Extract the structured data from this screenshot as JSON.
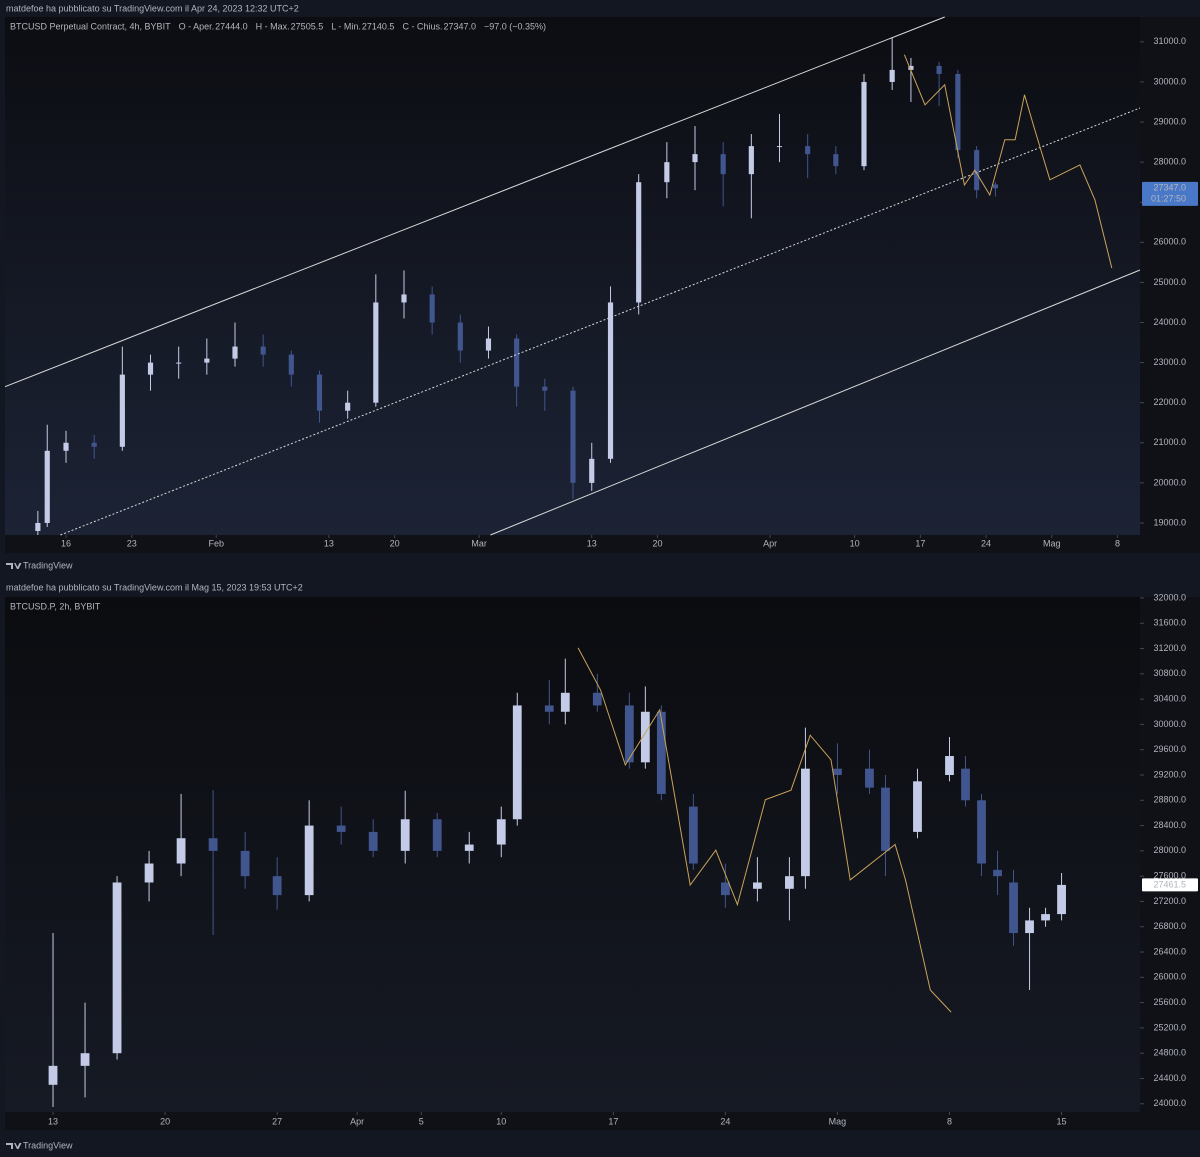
{
  "chart_data": [
    {
      "type": "candlestick",
      "header": "matdefoe ha pubblicato su TradingView.com il Apr 24, 2023 12:32 UTC+2",
      "brand": "TradingView",
      "legend": [
        {
          "text": "BTCUSD Perpetual Contract, 4h, BYBIT",
          "color": "#d1d4dc"
        },
        {
          "text": "O - Aper.",
          "color": "#d1d4dc"
        },
        {
          "text": "27444.0",
          "color": "#6a8fd8"
        },
        {
          "text": "H - Max.",
          "color": "#d1d4dc"
        },
        {
          "text": "27505.5",
          "color": "#6a8fd8"
        },
        {
          "text": "L - Min.",
          "color": "#d1d4dc"
        },
        {
          "text": "27140.5",
          "color": "#6a8fd8"
        },
        {
          "text": "C - Chius.",
          "color": "#d1d4dc"
        },
        {
          "text": "27347.0",
          "color": "#6a8fd8"
        },
        {
          "text": "−97.0 (−0.35%)",
          "color": "#6a8fd8"
        }
      ],
      "background": [
        "#0c0d12",
        "#1c2335"
      ],
      "up_color": "#c3cbe6",
      "down_color": "#41558f",
      "xlim": [
        9.5,
        130.4
      ],
      "ylim": [
        18700,
        31620
      ],
      "xticks": [
        {
          "value": 16,
          "label": "16"
        },
        {
          "value": 23,
          "label": "23"
        },
        {
          "value": 32,
          "label": "Feb"
        },
        {
          "value": 44,
          "label": "13"
        },
        {
          "value": 51,
          "label": "20"
        },
        {
          "value": 60,
          "label": "Mar"
        },
        {
          "value": 72,
          "label": "13"
        },
        {
          "value": 79,
          "label": "20"
        },
        {
          "value": 91,
          "label": "Apr"
        },
        {
          "value": 100,
          "label": "10"
        },
        {
          "value": 107,
          "label": "17"
        },
        {
          "value": 114,
          "label": "24"
        },
        {
          "value": 121,
          "label": "Mag"
        },
        {
          "value": 128,
          "label": "8"
        }
      ],
      "yticks": [
        {
          "value": 19000,
          "label": "19000.0"
        },
        {
          "value": 20000,
          "label": "20000.0"
        },
        {
          "value": 21000,
          "label": "21000.0"
        },
        {
          "value": 22000,
          "label": "22000.0"
        },
        {
          "value": 23000,
          "label": "23000.0"
        },
        {
          "value": 24000,
          "label": "24000.0"
        },
        {
          "value": 25000,
          "label": "25000.0"
        },
        {
          "value": 26000,
          "label": "26000.0"
        },
        {
          "value": 27000,
          "label": "27000.0"
        },
        {
          "value": 28000,
          "label": "28000.0"
        },
        {
          "value": 29000,
          "label": "29000.0"
        },
        {
          "value": 30000,
          "label": "30000.0"
        },
        {
          "value": 31000,
          "label": "31000.0"
        }
      ],
      "x": [
        13,
        14,
        16,
        19,
        22,
        25,
        28,
        31,
        34,
        37,
        40,
        43,
        46,
        49,
        52,
        55,
        58,
        61,
        64,
        67,
        70,
        72,
        74,
        77,
        80,
        83,
        86,
        89,
        92,
        95,
        98,
        101,
        104,
        106,
        109,
        111,
        113,
        115
      ],
      "open": [
        18800,
        19000,
        20800,
        21000,
        20900,
        22700,
        23000,
        23000,
        23100,
        23400,
        23200,
        22700,
        21800,
        22000,
        24500,
        24700,
        24000,
        23300,
        23600,
        22400,
        22300,
        20000,
        20600,
        24500,
        27500,
        28000,
        28200,
        27700,
        28400,
        28400,
        28200,
        27900,
        30000,
        30300,
        30400,
        30200,
        28300,
        27444
      ],
      "high": [
        19300,
        21450,
        21300,
        21200,
        23400,
        23200,
        23400,
        23600,
        24000,
        23700,
        23300,
        22800,
        22300,
        25200,
        25300,
        24900,
        24200,
        23900,
        23700,
        22600,
        22400,
        21000,
        24900,
        27700,
        28500,
        28900,
        28500,
        28700,
        29200,
        28700,
        28400,
        30200,
        31100,
        30600,
        30500,
        30300,
        28400,
        27505.5
      ],
      "low": [
        18700,
        18900,
        20500,
        20600,
        20800,
        22300,
        22600,
        22700,
        22900,
        22900,
        22400,
        21500,
        21600,
        21900,
        24100,
        23700,
        23000,
        23100,
        21900,
        21800,
        19600,
        19800,
        20500,
        24200,
        27100,
        27300,
        26900,
        26600,
        28000,
        27600,
        27700,
        27800,
        29800,
        29500,
        29400,
        28100,
        27100,
        27140.5
      ],
      "close": [
        19000,
        20800,
        21000,
        20900,
        22700,
        23000,
        23000,
        23100,
        23400,
        23200,
        22700,
        21800,
        22000,
        24500,
        24700,
        24000,
        23300,
        23600,
        22400,
        22300,
        20000,
        20600,
        24500,
        27500,
        28000,
        28200,
        27700,
        28400,
        28400,
        28200,
        27900,
        30000,
        30300,
        30400,
        30200,
        28300,
        27300,
        27347
      ],
      "drawings": [
        {
          "color": "#d9d9d9",
          "dash": false,
          "x": [
            9.5,
            109.6
          ],
          "y": [
            22400,
            31620
          ]
        },
        {
          "color": "#d9d9d9",
          "dash": true,
          "x": [
            15.4,
            130.4
          ],
          "y": [
            18700,
            29350
          ]
        },
        {
          "color": "#d9d9d9",
          "dash": false,
          "x": [
            61.2,
            130.4
          ],
          "y": [
            18700,
            25310
          ]
        },
        {
          "color": "#c9a35a",
          "dash": false,
          "x": [
            105.3,
            107.5,
            109.6,
            111.7,
            112.8,
            114.4,
            116,
            117.1,
            118.1,
            119.2,
            120.8,
            124,
            125.6,
            127.4
          ],
          "y": [
            30680,
            29430,
            29930,
            27430,
            27800,
            27180,
            28560,
            28560,
            29680,
            28800,
            27560,
            27930,
            27060,
            25360
          ]
        }
      ],
      "price_label": {
        "value": 27347,
        "label": "27347.0",
        "sub": "01:27:50",
        "color": "#4a78c8",
        "text_color": "#ffffff"
      }
    },
    {
      "type": "candlestick",
      "header": "matdefoe ha pubblicato su TradingView.com il Mag 15, 2023 19:53 UTC+2",
      "brand": "TradingView",
      "legend": [
        {
          "text": "BTCUSD.P, 2h, BYBIT",
          "color": "#d1d4dc"
        }
      ],
      "background": [
        "#0b0c10",
        "#161a24"
      ],
      "up_color": "#c3cbe6",
      "down_color": "#41558f",
      "xlim": [
        69,
        139.9
      ],
      "ylim": [
        23870,
        32015
      ],
      "xticks": [
        {
          "value": 72,
          "label": "13"
        },
        {
          "value": 79,
          "label": "20"
        },
        {
          "value": 86,
          "label": "27"
        },
        {
          "value": 91,
          "label": "Apr"
        },
        {
          "value": 95,
          "label": "5"
        },
        {
          "value": 100,
          "label": "10"
        },
        {
          "value": 107,
          "label": "17"
        },
        {
          "value": 114,
          "label": "24"
        },
        {
          "value": 121,
          "label": "Mag"
        },
        {
          "value": 128,
          "label": "8"
        },
        {
          "value": 135,
          "label": "15"
        }
      ],
      "yticks": [
        {
          "value": 24000,
          "label": "24000.0"
        },
        {
          "value": 24400,
          "label": "24400.0"
        },
        {
          "value": 24800,
          "label": "24800.0"
        },
        {
          "value": 25200,
          "label": "25200.0"
        },
        {
          "value": 25600,
          "label": "25600.0"
        },
        {
          "value": 26000,
          "label": "26000.0"
        },
        {
          "value": 26400,
          "label": "26400.0"
        },
        {
          "value": 26800,
          "label": "26800.0"
        },
        {
          "value": 27200,
          "label": "27200.0"
        },
        {
          "value": 27600,
          "label": "27600.0"
        },
        {
          "value": 28000,
          "label": "28000.0"
        },
        {
          "value": 28400,
          "label": "28400.0"
        },
        {
          "value": 28800,
          "label": "28800.0"
        },
        {
          "value": 29200,
          "label": "29200.0"
        },
        {
          "value": 29600,
          "label": "29600.0"
        },
        {
          "value": 30000,
          "label": "30000.0"
        },
        {
          "value": 30400,
          "label": "30400.0"
        },
        {
          "value": 30800,
          "label": "30800.0"
        },
        {
          "value": 31200,
          "label": "31200.0"
        },
        {
          "value": 31600,
          "label": "31600.0"
        },
        {
          "value": 32000,
          "label": "32000.0"
        }
      ],
      "x": [
        72,
        74,
        76,
        78,
        80,
        82,
        84,
        86,
        88,
        90,
        92,
        94,
        96,
        98,
        100,
        101,
        103,
        104,
        106,
        108,
        109,
        110,
        112,
        114,
        116,
        118,
        119,
        121,
        123,
        124,
        126,
        128,
        129,
        130,
        131,
        132,
        133,
        134,
        135
      ],
      "open": [
        24300,
        24600,
        24800,
        27500,
        27800,
        28200,
        28000,
        27600,
        27300,
        28400,
        28300,
        28000,
        28500,
        28000,
        28100,
        28500,
        30300,
        30200,
        30500,
        30300,
        29400,
        30200,
        28700,
        27500,
        27400,
        27400,
        27600,
        29300,
        29300,
        29000,
        28300,
        29200,
        29300,
        28800,
        27700,
        27500,
        26700,
        26900,
        27000
      ],
      "high": [
        26700,
        25600,
        27600,
        28000,
        28900,
        28960,
        28300,
        27900,
        28800,
        28700,
        28500,
        28950,
        28600,
        28300,
        28700,
        30500,
        30700,
        31040,
        30800,
        30500,
        30600,
        30300,
        28900,
        27800,
        27900,
        27900,
        29950,
        29700,
        29600,
        29200,
        29300,
        29800,
        29500,
        28900,
        28000,
        27700,
        27100,
        27100,
        27650
      ],
      "low": [
        23950,
        24100,
        24700,
        27200,
        27600,
        26670,
        27400,
        27070,
        27200,
        28100,
        27900,
        27800,
        27900,
        27800,
        27900,
        28400,
        30000,
        30000,
        30200,
        29300,
        29300,
        28800,
        27700,
        27100,
        27200,
        26900,
        27400,
        28900,
        28900,
        27600,
        28200,
        29100,
        28700,
        27600,
        27300,
        26500,
        25800,
        26800,
        26900
      ],
      "close": [
        24600,
        24800,
        27500,
        27800,
        28200,
        28000,
        27600,
        27300,
        28400,
        28300,
        28000,
        28500,
        28000,
        28100,
        28500,
        30300,
        30200,
        30500,
        30300,
        29400,
        30200,
        28900,
        27800,
        27300,
        27500,
        27600,
        29300,
        29200,
        29000,
        28000,
        29100,
        29500,
        28800,
        27800,
        27600,
        26700,
        26900,
        27000,
        27461.5
      ],
      "drawings": [
        {
          "color": "#c9a35a",
          "dash": false,
          "x": [
            104.8,
            106.2,
            107.75,
            109.9,
            111.8,
            113.4,
            114.75,
            116.5,
            118.1,
            119.3,
            120.6,
            121.8,
            124.6,
            125.25,
            126.8,
            128.1
          ],
          "y": [
            31210,
            30545,
            29360,
            30230,
            27460,
            28010,
            27150,
            28810,
            28960,
            29830,
            29440,
            27540,
            28100,
            27540,
            25800,
            25450
          ]
        }
      ],
      "price_label": {
        "value": 27461.5,
        "label": "27461.5",
        "color": "#ffffff",
        "text_color": "#131722"
      }
    }
  ]
}
